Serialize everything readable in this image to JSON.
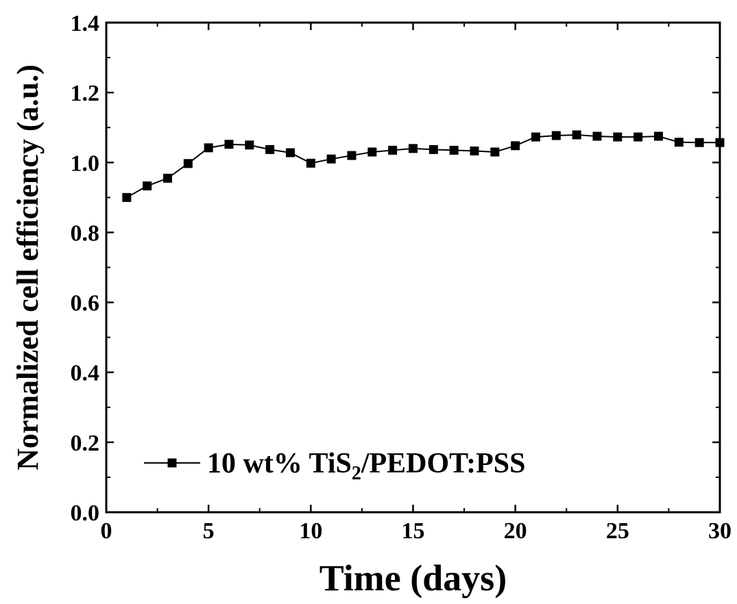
{
  "chart_data": {
    "type": "line",
    "title": "",
    "xlabel": "Time (days)",
    "ylabel": "Normalized cell efficiency (a.u.)",
    "xlim": [
      0,
      30
    ],
    "ylim": [
      0.0,
      1.4
    ],
    "x_ticks": [
      "0",
      "5",
      "10",
      "15",
      "20",
      "25",
      "30"
    ],
    "y_ticks": [
      "0.0",
      "0.2",
      "0.4",
      "0.6",
      "0.8",
      "1.0",
      "1.2",
      "1.4"
    ],
    "grid": false,
    "legend_position": "bottom-left",
    "series": [
      {
        "name_parts": [
          "10 wt% TiS",
          "2",
          "/PEDOT:PSS"
        ],
        "marker": "square",
        "color": "#000000",
        "x": [
          1,
          2,
          3,
          4,
          5,
          6,
          7,
          8,
          9,
          10,
          11,
          12,
          13,
          14,
          15,
          16,
          17,
          18,
          19,
          20,
          21,
          22,
          23,
          24,
          25,
          26,
          27,
          28,
          29,
          30
        ],
        "y": [
          0.9,
          0.933,
          0.955,
          0.997,
          1.042,
          1.052,
          1.05,
          1.037,
          1.028,
          0.998,
          1.01,
          1.02,
          1.03,
          1.035,
          1.04,
          1.037,
          1.035,
          1.033,
          1.03,
          1.048,
          1.073,
          1.077,
          1.079,
          1.075,
          1.073,
          1.073,
          1.075,
          1.058,
          1.057,
          1.057
        ]
      }
    ]
  }
}
